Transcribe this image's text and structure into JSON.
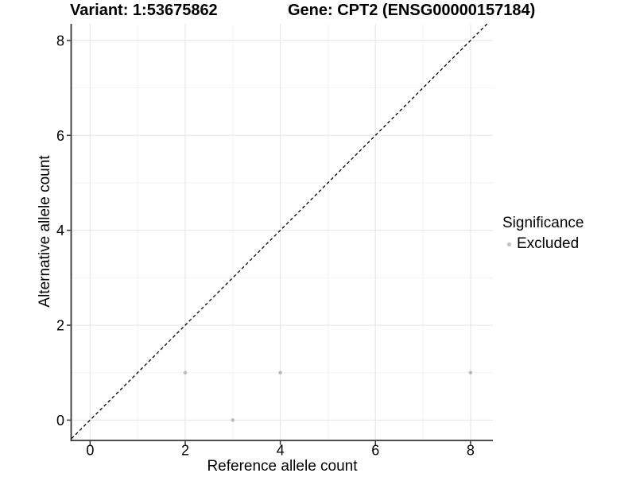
{
  "figure": {
    "title_variant": "Variant: 1:53675862",
    "title_gene": "Gene: CPT2 (ENSG00000157184)"
  },
  "legend": {
    "title": "Significance",
    "items": [
      {
        "label": "Excluded",
        "color": "#bdbdbd"
      }
    ]
  },
  "chart_data": {
    "type": "scatter",
    "title": "Variant: 1:53675862 — Gene: CPT2 (ENSG00000157184)",
    "xlabel": "Reference allele count",
    "ylabel": "Alternative allele count",
    "xlim": [
      -0.39,
      8.47
    ],
    "ylim": [
      -0.42,
      8.35
    ],
    "x_ticks": [
      0,
      2,
      4,
      6,
      8
    ],
    "y_ticks": [
      0,
      2,
      4,
      6,
      8
    ],
    "x_minor_ticks": [
      1,
      3,
      5,
      7
    ],
    "y_minor_ticks": [
      1,
      3,
      5,
      7
    ],
    "grid": "major+minor",
    "legend_position": "right",
    "series": [
      {
        "name": "Excluded",
        "color": "#bdbdbd",
        "points": [
          {
            "x": 2,
            "y": 1
          },
          {
            "x": 3,
            "y": 0
          },
          {
            "x": 4,
            "y": 1
          },
          {
            "x": 8,
            "y": 1
          }
        ]
      }
    ],
    "identity_line": {
      "slope": 1,
      "intercept": 0,
      "style": "dashed",
      "color": "#000000"
    }
  },
  "style": {
    "background": "#ffffff",
    "axis_line_color": "#343434",
    "tick_color": "#343434",
    "grid_major_color": "#e8e8e8",
    "grid_minor_color": "#f3f3f3",
    "point_color": "#bdbdbd",
    "identity_line_color": "#000000",
    "text_color": "#000000"
  }
}
